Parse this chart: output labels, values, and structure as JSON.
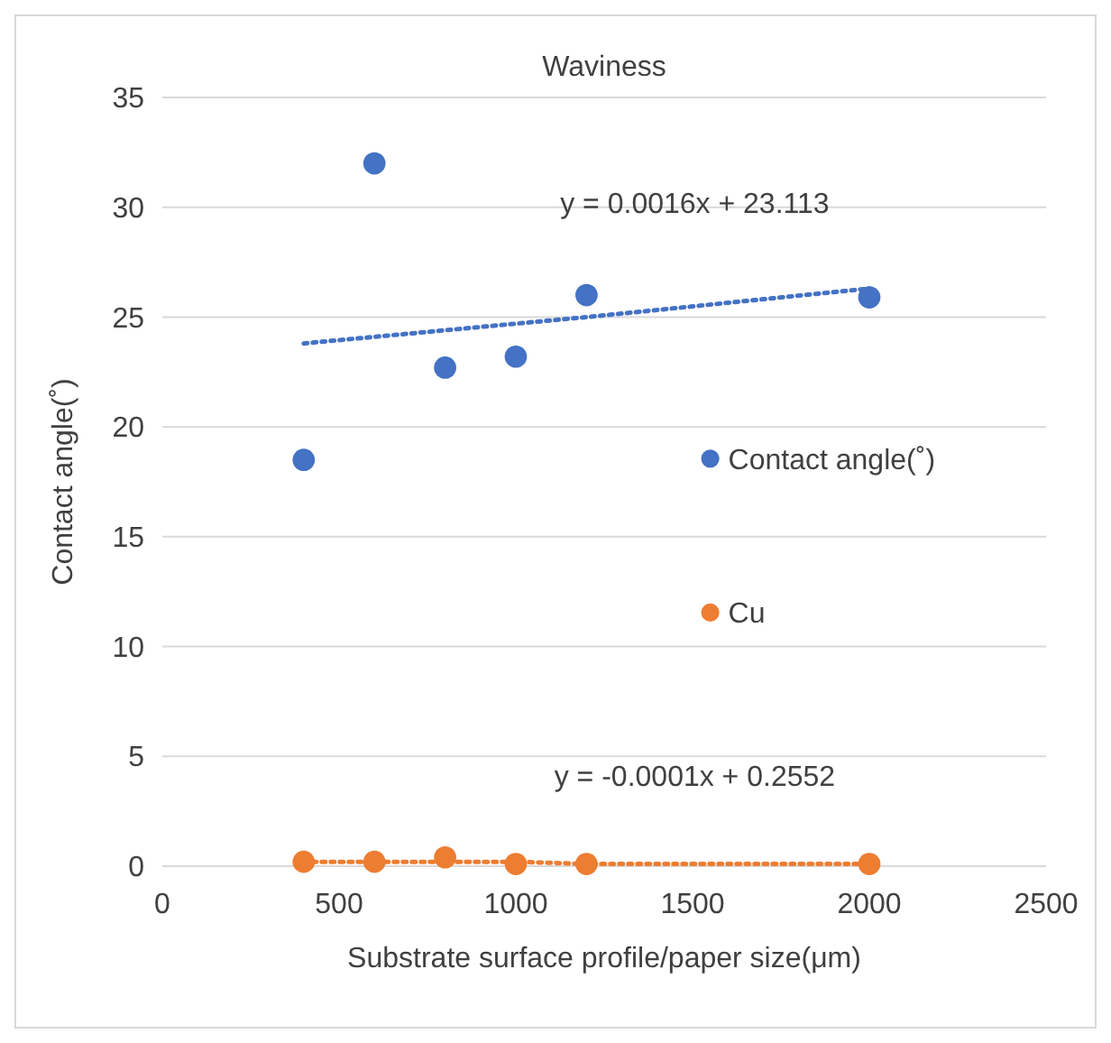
{
  "chart_data": {
    "type": "scatter",
    "title": "Waviness",
    "xlabel": "Substrate surface profile/paper size(μm)",
    "ylabel": "Contact angle(˚)",
    "xlim": [
      0,
      2500
    ],
    "xticks": [
      0,
      500,
      1000,
      1500,
      2000,
      2500
    ],
    "ylim": [
      0,
      35
    ],
    "yticks": [
      0,
      5,
      10,
      15,
      20,
      25,
      30,
      35
    ],
    "grid": "y",
    "legend": "right",
    "marker": "circle",
    "x": [
      400,
      600,
      800,
      1000,
      1200,
      2000
    ],
    "series": [
      {
        "name": "Contact angle(˚)",
        "color": "#4472c4",
        "values": [
          18.5,
          32.0,
          22.7,
          23.2,
          26.0,
          25.9
        ]
      },
      {
        "name": "Cu",
        "color": "#ed7d31",
        "values": [
          0.2,
          0.2,
          0.4,
          0.1,
          0.1,
          0.1
        ]
      },
      {
        "type": "line",
        "color": "#4472c4",
        "values": [
          23.8,
          24.1,
          24.4,
          24.7,
          25.0,
          26.3
        ],
        "marker": "none",
        "line_style": "dotted"
      },
      {
        "type": "line",
        "color": "#ed7d31",
        "values": [
          0.2,
          0.2,
          0.2,
          0.2,
          0.1,
          0.1
        ],
        "marker": "none",
        "line_style": "dotted"
      }
    ],
    "annotations": [
      "y = 0.0016x + 23.113",
      "y = -0.0001x + 0.2552"
    ]
  }
}
